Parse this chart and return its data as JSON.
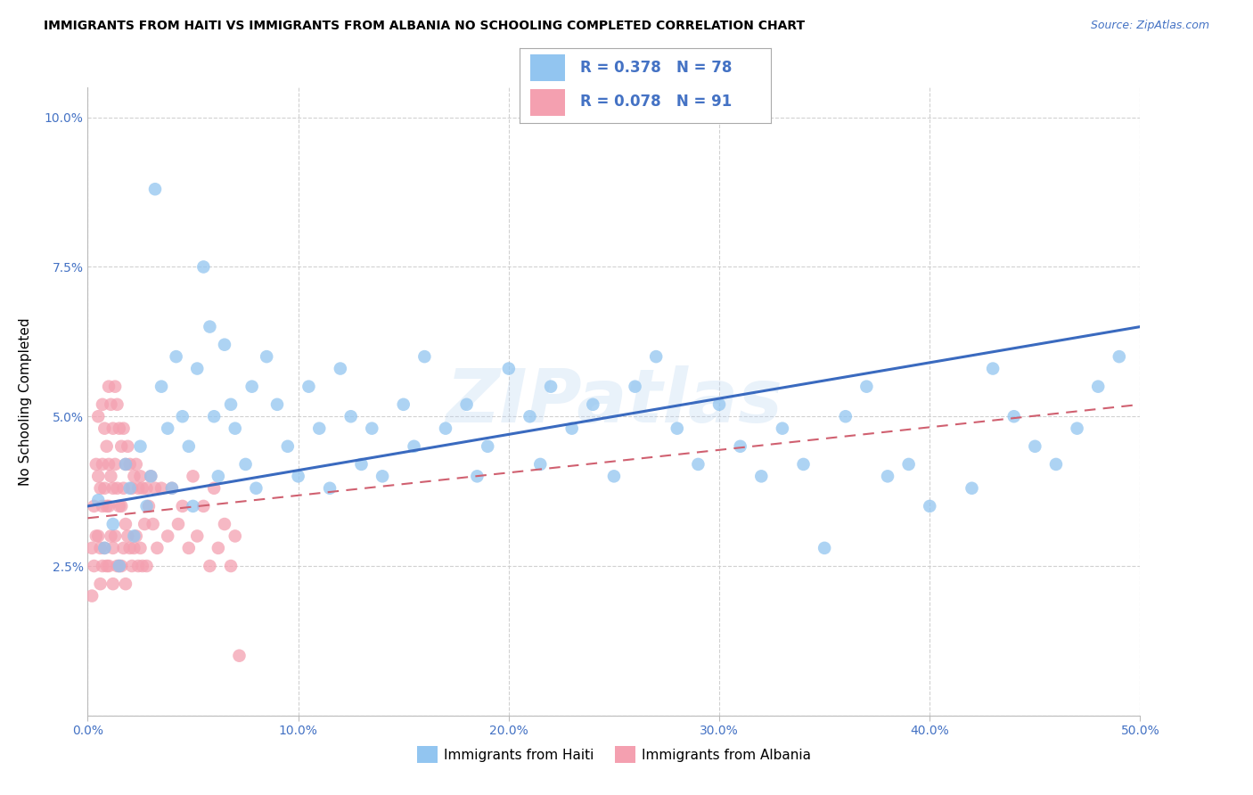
{
  "title": "IMMIGRANTS FROM HAITI VS IMMIGRANTS FROM ALBANIA NO SCHOOLING COMPLETED CORRELATION CHART",
  "source": "Source: ZipAtlas.com",
  "ylabel": "No Schooling Completed",
  "xlim": [
    0.0,
    0.5
  ],
  "ylim": [
    0.0,
    0.105
  ],
  "haiti_R": 0.378,
  "haiti_N": 78,
  "albania_R": 0.078,
  "albania_N": 91,
  "haiti_color": "#92c5f0",
  "albania_color": "#f4a0b0",
  "haiti_line_color": "#3a6abf",
  "albania_line_color": "#d06070",
  "background_color": "#ffffff",
  "grid_color": "#cccccc",
  "watermark": "ZIPatlas",
  "legend_label_haiti": "Immigrants from Haiti",
  "legend_label_albania": "Immigrants from Albania",
  "haiti_x": [
    0.005,
    0.008,
    0.012,
    0.015,
    0.018,
    0.02,
    0.022,
    0.025,
    0.028,
    0.03,
    0.032,
    0.035,
    0.038,
    0.04,
    0.042,
    0.045,
    0.048,
    0.05,
    0.052,
    0.055,
    0.058,
    0.06,
    0.062,
    0.065,
    0.068,
    0.07,
    0.075,
    0.078,
    0.08,
    0.085,
    0.09,
    0.095,
    0.1,
    0.105,
    0.11,
    0.115,
    0.12,
    0.125,
    0.13,
    0.135,
    0.14,
    0.15,
    0.155,
    0.16,
    0.17,
    0.18,
    0.185,
    0.19,
    0.2,
    0.21,
    0.215,
    0.22,
    0.23,
    0.24,
    0.25,
    0.26,
    0.27,
    0.28,
    0.29,
    0.3,
    0.31,
    0.32,
    0.33,
    0.34,
    0.35,
    0.36,
    0.37,
    0.38,
    0.39,
    0.4,
    0.42,
    0.43,
    0.44,
    0.45,
    0.46,
    0.47,
    0.48,
    0.49
  ],
  "haiti_y": [
    0.036,
    0.028,
    0.032,
    0.025,
    0.042,
    0.038,
    0.03,
    0.045,
    0.035,
    0.04,
    0.088,
    0.055,
    0.048,
    0.038,
    0.06,
    0.05,
    0.045,
    0.035,
    0.058,
    0.075,
    0.065,
    0.05,
    0.04,
    0.062,
    0.052,
    0.048,
    0.042,
    0.055,
    0.038,
    0.06,
    0.052,
    0.045,
    0.04,
    0.055,
    0.048,
    0.038,
    0.058,
    0.05,
    0.042,
    0.048,
    0.04,
    0.052,
    0.045,
    0.06,
    0.048,
    0.052,
    0.04,
    0.045,
    0.058,
    0.05,
    0.042,
    0.055,
    0.048,
    0.052,
    0.04,
    0.055,
    0.06,
    0.048,
    0.042,
    0.052,
    0.045,
    0.04,
    0.048,
    0.042,
    0.028,
    0.05,
    0.055,
    0.04,
    0.042,
    0.035,
    0.038,
    0.058,
    0.05,
    0.045,
    0.042,
    0.048,
    0.055,
    0.06
  ],
  "albania_x": [
    0.002,
    0.002,
    0.003,
    0.003,
    0.004,
    0.004,
    0.005,
    0.005,
    0.005,
    0.006,
    0.006,
    0.006,
    0.007,
    0.007,
    0.007,
    0.007,
    0.008,
    0.008,
    0.008,
    0.009,
    0.009,
    0.009,
    0.01,
    0.01,
    0.01,
    0.01,
    0.011,
    0.011,
    0.011,
    0.012,
    0.012,
    0.012,
    0.012,
    0.013,
    0.013,
    0.013,
    0.014,
    0.014,
    0.014,
    0.015,
    0.015,
    0.015,
    0.016,
    0.016,
    0.016,
    0.017,
    0.017,
    0.017,
    0.018,
    0.018,
    0.018,
    0.019,
    0.019,
    0.02,
    0.02,
    0.021,
    0.021,
    0.022,
    0.022,
    0.023,
    0.023,
    0.024,
    0.024,
    0.025,
    0.025,
    0.026,
    0.026,
    0.027,
    0.028,
    0.028,
    0.029,
    0.03,
    0.031,
    0.032,
    0.033,
    0.035,
    0.038,
    0.04,
    0.043,
    0.045,
    0.048,
    0.05,
    0.052,
    0.055,
    0.058,
    0.06,
    0.062,
    0.065,
    0.068,
    0.07,
    0.072
  ],
  "albania_y": [
    0.028,
    0.02,
    0.035,
    0.025,
    0.042,
    0.03,
    0.05,
    0.04,
    0.03,
    0.038,
    0.028,
    0.022,
    0.052,
    0.042,
    0.035,
    0.025,
    0.048,
    0.038,
    0.028,
    0.045,
    0.035,
    0.025,
    0.055,
    0.042,
    0.035,
    0.025,
    0.052,
    0.04,
    0.03,
    0.048,
    0.038,
    0.028,
    0.022,
    0.055,
    0.042,
    0.03,
    0.052,
    0.038,
    0.025,
    0.048,
    0.035,
    0.025,
    0.045,
    0.035,
    0.025,
    0.048,
    0.038,
    0.028,
    0.042,
    0.032,
    0.022,
    0.045,
    0.03,
    0.042,
    0.028,
    0.038,
    0.025,
    0.04,
    0.028,
    0.042,
    0.03,
    0.038,
    0.025,
    0.04,
    0.028,
    0.038,
    0.025,
    0.032,
    0.038,
    0.025,
    0.035,
    0.04,
    0.032,
    0.038,
    0.028,
    0.038,
    0.03,
    0.038,
    0.032,
    0.035,
    0.028,
    0.04,
    0.03,
    0.035,
    0.025,
    0.038,
    0.028,
    0.032,
    0.025,
    0.03,
    0.01
  ]
}
